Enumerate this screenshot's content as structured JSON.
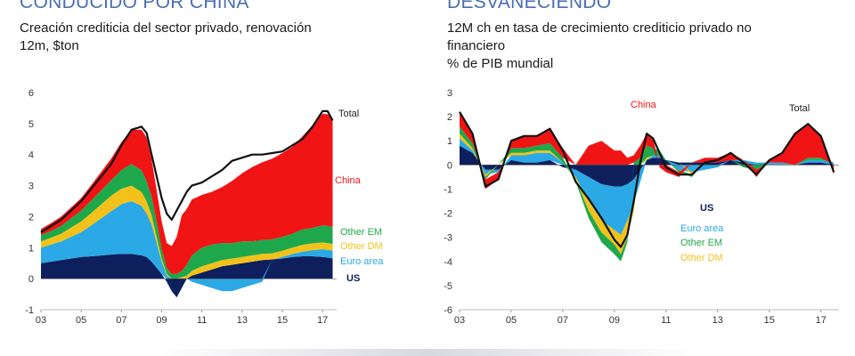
{
  "left": {
    "headline": "CONDUCIDO POR CHINA",
    "subtitle_line1": "Creación crediticia del sector privado, renovación",
    "subtitle_line2": "12m, $ton"
  },
  "right": {
    "headline": "DESVANECIENDO",
    "subtitle_line1": "12M ch en tasa de crecimiento crediticio privado no",
    "subtitle_line2": "financiero",
    "subtitle_line3": "% de PIB mundial"
  },
  "colors": {
    "us": "#0d1f5c",
    "euro_area": "#2aa9e6",
    "other_dm": "#f2c21a",
    "other_em": "#1fa84b",
    "china": "#f01414",
    "total": "#111111"
  },
  "chart_data": [
    {
      "type": "area",
      "stacked": true,
      "x_ticks": [
        "03",
        "05",
        "07",
        "09",
        "11",
        "13",
        "15",
        "17"
      ],
      "x_range": [
        2003,
        2017.7
      ],
      "ylim": [
        -1,
        6
      ],
      "y_ticks": [
        -1,
        0,
        1,
        2,
        3,
        4,
        5,
        6
      ],
      "labels": {
        "total": "Total",
        "china": "China",
        "other_em": "Other EM",
        "other_dm": "Other DM",
        "euro_area": "Euro area",
        "us": "US"
      },
      "x": [
        2003.0,
        2003.5,
        2004.0,
        2004.5,
        2005.0,
        2005.5,
        2006.0,
        2006.5,
        2007.0,
        2007.5,
        2008.0,
        2008.25,
        2008.5,
        2008.75,
        2009.0,
        2009.25,
        2009.5,
        2009.75,
        2010.0,
        2010.25,
        2010.5,
        2011.0,
        2011.5,
        2012.0,
        2012.5,
        2013.0,
        2013.5,
        2014.0,
        2014.5,
        2015.0,
        2015.5,
        2016.0,
        2016.5,
        2017.0,
        2017.25,
        2017.5
      ],
      "series": [
        {
          "key": "us",
          "values": [
            0.5,
            0.55,
            0.6,
            0.65,
            0.7,
            0.72,
            0.75,
            0.78,
            0.8,
            0.8,
            0.75,
            0.7,
            0.55,
            0.35,
            0.15,
            -0.1,
            -0.4,
            -0.6,
            -0.3,
            0.0,
            0.1,
            0.2,
            0.3,
            0.4,
            0.45,
            0.5,
            0.55,
            0.6,
            0.62,
            0.65,
            0.7,
            0.72,
            0.72,
            0.7,
            0.68,
            0.65
          ]
        },
        {
          "key": "euro_area",
          "values": [
            0.5,
            0.55,
            0.6,
            0.7,
            0.8,
            1.0,
            1.2,
            1.4,
            1.6,
            1.7,
            1.6,
            1.4,
            1.2,
            0.8,
            0.4,
            0.1,
            0.0,
            0.0,
            0.0,
            0.0,
            -0.1,
            -0.2,
            -0.3,
            -0.4,
            -0.4,
            -0.3,
            -0.2,
            -0.1,
            0.0,
            0.05,
            0.1,
            0.15,
            0.2,
            0.25,
            0.25,
            0.25
          ]
        },
        {
          "key": "other_dm",
          "values": [
            0.2,
            0.22,
            0.25,
            0.3,
            0.35,
            0.4,
            0.45,
            0.5,
            0.5,
            0.5,
            0.45,
            0.4,
            0.3,
            0.2,
            0.1,
            0.05,
            0.0,
            0.0,
            0.05,
            0.1,
            0.15,
            0.2,
            0.2,
            0.2,
            0.2,
            0.2,
            0.2,
            0.2,
            0.2,
            0.2,
            0.2,
            0.22,
            0.22,
            0.22,
            0.22,
            0.22
          ]
        },
        {
          "key": "other_em",
          "values": [
            0.2,
            0.22,
            0.25,
            0.3,
            0.35,
            0.4,
            0.45,
            0.5,
            0.6,
            0.7,
            0.7,
            0.65,
            0.6,
            0.5,
            0.3,
            0.2,
            0.15,
            0.15,
            0.2,
            0.35,
            0.5,
            0.6,
            0.6,
            0.55,
            0.5,
            0.5,
            0.45,
            0.45,
            0.45,
            0.45,
            0.45,
            0.5,
            0.5,
            0.55,
            0.55,
            0.55
          ]
        },
        {
          "key": "china",
          "values": [
            0.2,
            0.25,
            0.3,
            0.35,
            0.4,
            0.5,
            0.6,
            0.7,
            0.9,
            1.1,
            1.3,
            1.4,
            1.2,
            1.0,
            0.9,
            0.8,
            0.9,
            1.2,
            1.8,
            1.8,
            1.8,
            1.7,
            1.7,
            1.8,
            2.0,
            2.2,
            2.4,
            2.5,
            2.6,
            2.7,
            2.8,
            3.0,
            3.3,
            3.6,
            3.6,
            3.5
          ]
        }
      ],
      "total": [
        1.5,
        1.7,
        1.9,
        2.2,
        2.5,
        2.9,
        3.3,
        3.7,
        4.3,
        4.8,
        4.9,
        4.7,
        4.0,
        3.3,
        2.6,
        2.1,
        1.9,
        2.2,
        2.5,
        2.8,
        3.0,
        3.1,
        3.3,
        3.5,
        3.8,
        3.9,
        4.0,
        4.0,
        4.05,
        4.1,
        4.3,
        4.5,
        4.9,
        5.4,
        5.4,
        5.1
      ]
    },
    {
      "type": "area",
      "stacked": true,
      "x_ticks": [
        "03",
        "05",
        "07",
        "09",
        "11",
        "13",
        "15",
        "17"
      ],
      "x_range": [
        2003,
        2017.7
      ],
      "ylim": [
        -6,
        3
      ],
      "y_ticks": [
        -6,
        -5,
        -4,
        -3,
        -2,
        -1,
        0,
        1,
        2,
        3
      ],
      "labels": {
        "total": "Total",
        "china": "China",
        "us": "US",
        "euro_area": "Euro area",
        "other_em": "Other EM",
        "other_dm": "Other DM"
      },
      "x": [
        2003.0,
        2003.5,
        2004.0,
        2004.5,
        2005.0,
        2005.5,
        2006.0,
        2006.5,
        2007.0,
        2007.5,
        2008.0,
        2008.5,
        2009.0,
        2009.25,
        2009.5,
        2009.75,
        2010.0,
        2010.25,
        2010.5,
        2010.75,
        2011.0,
        2011.5,
        2012.0,
        2012.5,
        2013.0,
        2013.5,
        2014.0,
        2014.5,
        2015.0,
        2015.5,
        2016.0,
        2016.5,
        2017.0,
        2017.5
      ],
      "series": [
        {
          "key": "us",
          "values": [
            0.8,
            0.5,
            -0.2,
            -0.2,
            0.2,
            0.1,
            0.1,
            0.2,
            -0.1,
            -0.2,
            -0.5,
            -0.8,
            -0.9,
            -0.9,
            -0.8,
            -0.6,
            -0.2,
            0.2,
            0.3,
            0.3,
            0.2,
            0.1,
            0.1,
            0.1,
            0.1,
            0.2,
            0.1,
            0.0,
            0.0,
            0.0,
            0.0,
            0.1,
            0.1,
            0.0
          ]
        },
        {
          "key": "euro_area",
          "values": [
            0.3,
            0.1,
            -0.2,
            -0.1,
            0.2,
            0.3,
            0.4,
            0.3,
            0.1,
            -0.3,
            -1.0,
            -1.5,
            -1.8,
            -2.0,
            -1.5,
            -1.0,
            -0.5,
            0.0,
            0.1,
            0.1,
            0.0,
            -0.2,
            -0.3,
            -0.2,
            -0.1,
            0.0,
            0.1,
            0.1,
            0.1,
            0.1,
            0.0,
            0.1,
            0.1,
            0.1
          ]
        },
        {
          "key": "other_dm",
          "values": [
            0.2,
            0.1,
            -0.1,
            0.0,
            0.1,
            0.1,
            0.1,
            0.1,
            0.0,
            -0.1,
            -0.4,
            -0.5,
            -0.6,
            -0.8,
            -0.7,
            -0.3,
            0.0,
            0.1,
            0.0,
            0.0,
            0.0,
            0.0,
            -0.1,
            0.0,
            0.0,
            0.0,
            0.0,
            0.0,
            0.0,
            0.0,
            0.0,
            0.0,
            0.0,
            0.0
          ]
        },
        {
          "key": "other_em",
          "values": [
            0.3,
            0.2,
            -0.1,
            0.0,
            0.2,
            0.2,
            0.2,
            0.3,
            0.2,
            -0.1,
            -0.3,
            -0.4,
            -0.4,
            -0.3,
            -0.2,
            0.1,
            0.3,
            0.5,
            0.3,
            0.2,
            0.0,
            -0.1,
            -0.1,
            0.0,
            0.0,
            0.0,
            -0.1,
            -0.2,
            0.0,
            0.0,
            0.0,
            0.1,
            0.1,
            0.0
          ]
        },
        {
          "key": "china",
          "values": [
            0.6,
            0.4,
            -0.4,
            -0.3,
            0.3,
            0.5,
            0.4,
            0.6,
            0.4,
            0.0,
            0.8,
            1.0,
            0.6,
            0.6,
            0.3,
            0.3,
            0.5,
            0.5,
            0.4,
            -0.1,
            -0.3,
            -0.2,
            0.0,
            0.2,
            0.2,
            0.3,
            0.0,
            -0.3,
            0.1,
            0.4,
            1.3,
            1.4,
            0.9,
            -0.4
          ]
        }
      ],
      "total": [
        2.2,
        1.3,
        -0.9,
        -0.6,
        1.0,
        1.2,
        1.2,
        1.5,
        0.6,
        -0.7,
        -1.4,
        -2.2,
        -3.1,
        -3.4,
        -2.9,
        -1.5,
        0.1,
        1.3,
        1.1,
        0.5,
        -0.1,
        -0.4,
        -0.4,
        0.1,
        0.2,
        0.5,
        0.1,
        -0.4,
        0.2,
        0.5,
        1.3,
        1.7,
        1.2,
        -0.3
      ]
    }
  ]
}
